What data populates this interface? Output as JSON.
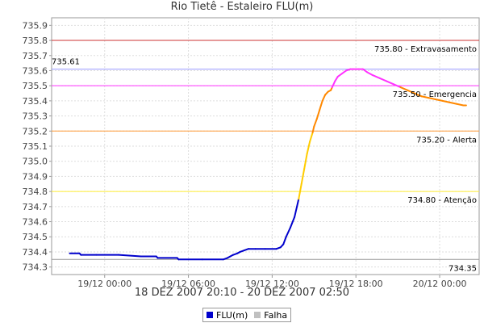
{
  "chart_data": {
    "type": "line",
    "title": "Rio Tietê - Estaleiro FLU(m)",
    "subtitle": "18 DEZ 2007 20:10 - 20 DEZ 2007 02:50",
    "x_unit": "hours since 18/12 20:00",
    "xlim": [
      20.2,
      50.83
    ],
    "ylim": [
      734.25,
      735.95
    ],
    "y_ticks": [
      734.3,
      734.4,
      734.5,
      734.6,
      734.7,
      734.8,
      734.9,
      735.0,
      735.1,
      735.2,
      735.3,
      735.4,
      735.5,
      735.6,
      735.7,
      735.8,
      735.9
    ],
    "y_tick_labels": [
      "734.3",
      "734.4",
      "734.5",
      "734.6",
      "734.7",
      "734.8",
      "734.9",
      "735.0",
      "735.1",
      "735.2",
      "735.3",
      "735.4",
      "735.5",
      "735.6",
      "735.7",
      "735.8",
      "735.9"
    ],
    "x_ticks": [
      24,
      30,
      36,
      42,
      48
    ],
    "x_tick_labels": [
      "19/12 00:00",
      "19/12 06:00",
      "19/12 12:00",
      "19/12 18:00",
      "20/12 00:00"
    ],
    "grid": true,
    "thresholds": [
      {
        "value": 735.8,
        "label": "735.80 - Extravasamento",
        "color": "#cc3333"
      },
      {
        "value": 735.5,
        "label": "735.50 - Emergencia",
        "color": "#ff33ff"
      },
      {
        "value": 735.2,
        "label": "735.20 - Alerta",
        "color": "#ff9933"
      },
      {
        "value": 734.8,
        "label": "734.80 - Atenção",
        "color": "#ffee33"
      },
      {
        "value": 734.35,
        "label": "734.35",
        "color": "#999999"
      }
    ],
    "max_marker": {
      "value": 735.61,
      "label": "735.61",
      "color": "#9999ff"
    },
    "series": [
      {
        "name": "FLU(m)",
        "color": "#0000cc",
        "band_colors": {
          "normal": "#0000cc",
          "attention": "#ffcc00",
          "alert": "#ff8800",
          "emergency": "#ff33ff"
        },
        "x": [
          21.5,
          22.2,
          22.3,
          23.4,
          25.0,
          26.6,
          27.7,
          27.8,
          29.2,
          29.3,
          31.0,
          32.5,
          32.8,
          33.0,
          33.2,
          33.5,
          33.7,
          34.0,
          34.3,
          34.8,
          35.5,
          36.3,
          36.6,
          36.8,
          37.0,
          37.3,
          37.6,
          37.9,
          38.1,
          38.3,
          38.5,
          38.7,
          38.9,
          39.0,
          39.2,
          39.4,
          39.6,
          39.8,
          40.0,
          40.2,
          40.3,
          40.5,
          40.7,
          41.0,
          41.3,
          41.6,
          41.8,
          42.2,
          42.5,
          42.8,
          43.2,
          43.7,
          44.2,
          44.7,
          45.2,
          45.7,
          46.2,
          46.7,
          47.2,
          47.7,
          48.2,
          48.7,
          49.2,
          49.7,
          49.9
        ],
        "y": [
          734.39,
          734.39,
          734.38,
          734.38,
          734.38,
          734.37,
          734.37,
          734.36,
          734.36,
          734.35,
          734.35,
          734.35,
          734.36,
          734.37,
          734.38,
          734.39,
          734.4,
          734.41,
          734.42,
          734.42,
          734.42,
          734.42,
          734.43,
          734.45,
          734.5,
          734.56,
          734.63,
          734.75,
          734.85,
          734.95,
          735.05,
          735.13,
          735.19,
          735.23,
          735.28,
          735.34,
          735.4,
          735.44,
          735.46,
          735.47,
          735.49,
          735.53,
          735.56,
          735.58,
          735.6,
          735.61,
          735.61,
          735.61,
          735.61,
          735.59,
          735.57,
          735.55,
          735.53,
          735.51,
          735.49,
          735.47,
          735.45,
          735.43,
          735.42,
          735.41,
          735.4,
          735.39,
          735.38,
          735.37,
          735.37
        ]
      },
      {
        "name": "Falha",
        "color": "#c0c0c0",
        "x": [],
        "y": []
      }
    ]
  }
}
